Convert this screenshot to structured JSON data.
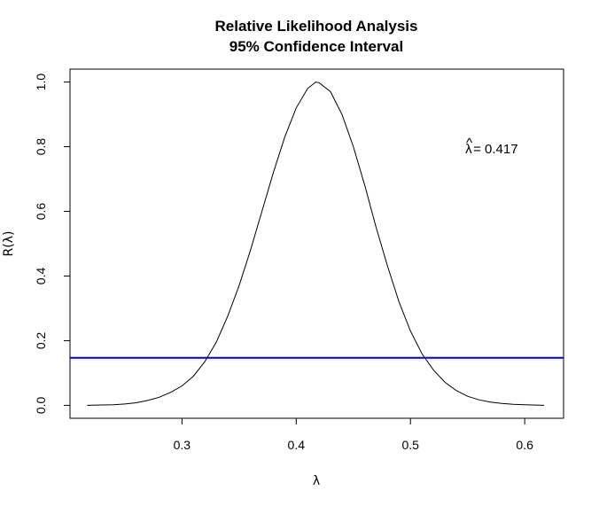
{
  "chart_data": {
    "type": "line",
    "title": "Relative Likelihood Analysis",
    "subtitle": "95% Confidence Interval",
    "xlabel": "λ",
    "ylabel": "R(λ)",
    "xlim": [
      0.202,
      0.634
    ],
    "ylim": [
      -0.04,
      1.04
    ],
    "x_ticks": [
      0.3,
      0.4,
      0.5,
      0.6
    ],
    "x_tick_labels": [
      "0.3",
      "0.4",
      "0.5",
      "0.6"
    ],
    "y_ticks": [
      0.0,
      0.2,
      0.4,
      0.6,
      0.8,
      1.0
    ],
    "y_tick_labels": [
      "0.0",
      "0.2",
      "0.4",
      "0.6",
      "0.8",
      "1.0"
    ],
    "grid": false,
    "series": [
      {
        "color": "#000000",
        "x": [
          0.217,
          0.23,
          0.24,
          0.25,
          0.26,
          0.27,
          0.28,
          0.29,
          0.3,
          0.31,
          0.32,
          0.33,
          0.34,
          0.35,
          0.36,
          0.37,
          0.38,
          0.39,
          0.4,
          0.41,
          0.417,
          0.42,
          0.43,
          0.44,
          0.45,
          0.46,
          0.47,
          0.48,
          0.49,
          0.5,
          0.51,
          0.52,
          0.53,
          0.54,
          0.55,
          0.56,
          0.57,
          0.58,
          0.59,
          0.6,
          0.617
        ],
        "y": [
          0.0,
          0.001,
          0.002,
          0.004,
          0.008,
          0.015,
          0.025,
          0.04,
          0.06,
          0.09,
          0.135,
          0.195,
          0.275,
          0.37,
          0.48,
          0.6,
          0.72,
          0.83,
          0.92,
          0.98,
          1.0,
          0.998,
          0.97,
          0.9,
          0.8,
          0.68,
          0.55,
          0.43,
          0.32,
          0.23,
          0.16,
          0.11,
          0.072,
          0.046,
          0.028,
          0.017,
          0.01,
          0.006,
          0.003,
          0.002,
          0.0
        ]
      }
    ],
    "cutoff_line": {
      "y": 0.147,
      "color": "#0000cc"
    },
    "annotation": {
      "symbol": "λ",
      "text": " = 0.417",
      "x": 0.548,
      "y": 0.78
    }
  }
}
